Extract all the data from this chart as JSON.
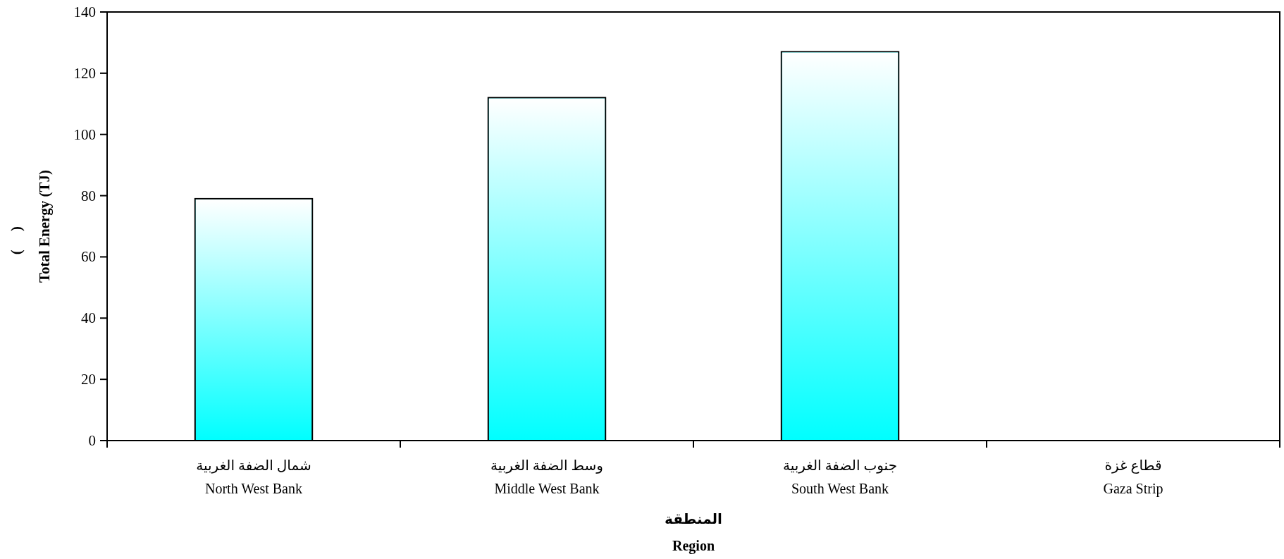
{
  "chart_data": {
    "type": "bar",
    "categories": [
      "شمال الضفة الغربية\nNorth West Bank",
      "وسط الضفة الغربية\nMiddle West Bank",
      "جنوب الضفة الغربية\nSouth West Bank",
      "قطاع غزة\nGaza Strip"
    ],
    "values": [
      79,
      112,
      127,
      null
    ],
    "color": "#00ffff",
    "xlabel": "المنطقة\nRegion",
    "ylabel": "Total Energy (TJ)",
    "annotations": [
      "(     )"
    ],
    "ylim": [
      0,
      140
    ],
    "yticks": [
      0,
      20,
      40,
      60,
      80,
      100,
      120,
      140
    ],
    "grid": false
  }
}
